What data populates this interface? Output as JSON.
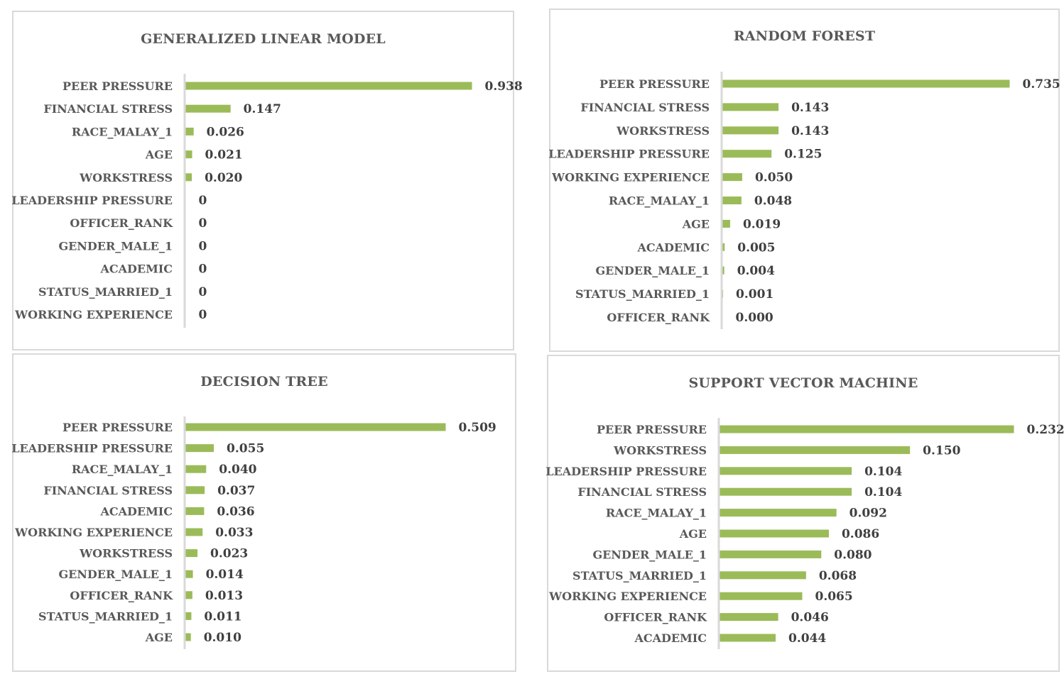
{
  "chart_data": [
    {
      "type": "bar",
      "orientation": "horizontal",
      "title": "GENERALIZED LINEAR MODEL",
      "categories": [
        "PEER PRESSURE",
        "FINANCIAL STRESS",
        "RACE_MALAY_1",
        "AGE",
        "WORKSTRESS",
        "LEADERSHIP PRESSURE",
        "OFFICER_RANK",
        "GENDER_MALE_1",
        "ACADEMIC",
        "STATUS_MARRIED_1",
        "WORKING EXPERIENCE"
      ],
      "values": [
        0.938,
        0.147,
        0.026,
        0.021,
        0.02,
        0,
        0,
        0,
        0,
        0,
        0
      ],
      "labels": [
        "0.938",
        "0.147",
        "0.026",
        "0.021",
        "0.020",
        "0",
        "0",
        "0",
        "0",
        "0",
        "0"
      ],
      "xlim": [
        0,
        0.938
      ],
      "grid": false,
      "legend": "none",
      "bar_color": "#9bbb59"
    },
    {
      "type": "bar",
      "orientation": "horizontal",
      "title": "RANDOM FOREST",
      "categories": [
        "PEER PRESSURE",
        "FINANCIAL STRESS",
        "WORKSTRESS",
        "LEADERSHIP PRESSURE",
        "WORKING EXPERIENCE",
        "RACE_MALAY_1",
        "AGE",
        "ACADEMIC",
        "GENDER_MALE_1",
        "STATUS_MARRIED_1",
        "OFFICER_RANK"
      ],
      "values": [
        0.735,
        0.143,
        0.143,
        0.125,
        0.05,
        0.048,
        0.019,
        0.005,
        0.004,
        0.001,
        0.0
      ],
      "labels": [
        "0.735",
        "0.143",
        "0.143",
        "0.125",
        "0.050",
        "0.048",
        "0.019",
        "0.005",
        "0.004",
        "0.001",
        "0.000"
      ],
      "xlim": [
        0,
        0.735
      ],
      "grid": false,
      "legend": "none",
      "bar_color": "#9bbb59"
    },
    {
      "type": "bar",
      "orientation": "horizontal",
      "title": "DECISION TREE",
      "categories": [
        "PEER PRESSURE",
        "LEADERSHIP PRESSURE",
        "RACE_MALAY_1",
        "FINANCIAL STRESS",
        "ACADEMIC",
        "WORKING EXPERIENCE",
        "WORKSTRESS",
        "GENDER_MALE_1",
        "OFFICER_RANK",
        "STATUS_MARRIED_1",
        "AGE"
      ],
      "values": [
        0.509,
        0.055,
        0.04,
        0.037,
        0.036,
        0.033,
        0.023,
        0.014,
        0.013,
        0.011,
        0.01
      ],
      "labels": [
        "0.509",
        "0.055",
        "0.040",
        "0.037",
        "0.036",
        "0.033",
        "0.023",
        "0.014",
        "0.013",
        "0.011",
        "0.010"
      ],
      "xlim": [
        0,
        0.509
      ],
      "grid": false,
      "legend": "none",
      "bar_color": "#9bbb59"
    },
    {
      "type": "bar",
      "orientation": "horizontal",
      "title": "SUPPORT VECTOR MACHINE",
      "categories": [
        "PEER PRESSURE",
        "WORKSTRESS",
        "LEADERSHIP PRESSURE",
        "FINANCIAL STRESS",
        "RACE_MALAY_1",
        "AGE",
        "GENDER_MALE_1",
        "STATUS_MARRIED_1",
        "WORKING EXPERIENCE",
        "OFFICER_RANK",
        "ACADEMIC"
      ],
      "values": [
        0.232,
        0.15,
        0.104,
        0.104,
        0.092,
        0.086,
        0.08,
        0.068,
        0.065,
        0.046,
        0.044
      ],
      "labels": [
        "0.232",
        "0.150",
        "0.104",
        "0.104",
        "0.092",
        "0.086",
        "0.080",
        "0.068",
        "0.065",
        "0.046",
        "0.044"
      ],
      "xlim": [
        0,
        0.232
      ],
      "grid": false,
      "legend": "none",
      "bar_color": "#9bbb59"
    }
  ]
}
